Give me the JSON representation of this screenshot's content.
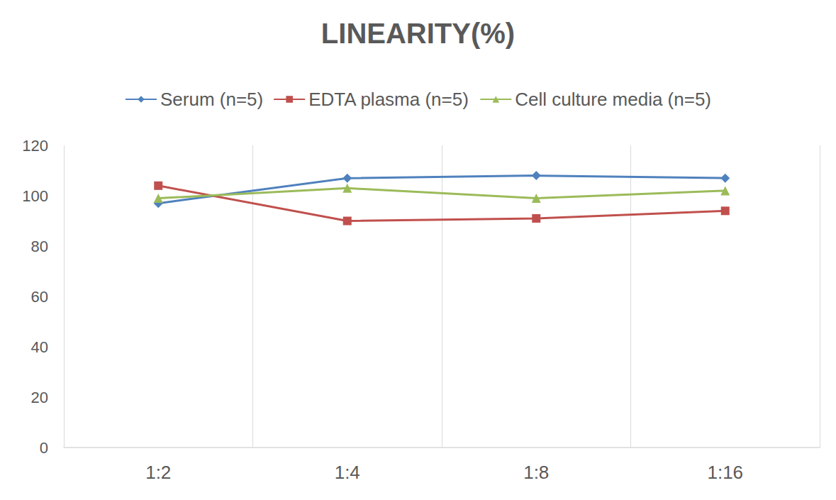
{
  "chart_data": {
    "type": "line",
    "title": "LINEARITY(%)",
    "categories": [
      "1:2",
      "1:4",
      "1:8",
      "1:16"
    ],
    "series": [
      {
        "name": "Serum (n=5)",
        "color": "#4f81bd",
        "marker": "diamond",
        "values": [
          97,
          107,
          108,
          107
        ]
      },
      {
        "name": "EDTA plasma (n=5)",
        "color": "#c0504d",
        "marker": "square",
        "values": [
          104,
          90,
          91,
          94
        ]
      },
      {
        "name": "Cell culture media (n=5)",
        "color": "#9bbb59",
        "marker": "triangle",
        "values": [
          99,
          103,
          99,
          102
        ]
      }
    ],
    "ylim": [
      0,
      120
    ],
    "yticks": [
      0,
      20,
      40,
      60,
      80,
      100,
      120
    ],
    "grid": true,
    "legend": "top"
  }
}
